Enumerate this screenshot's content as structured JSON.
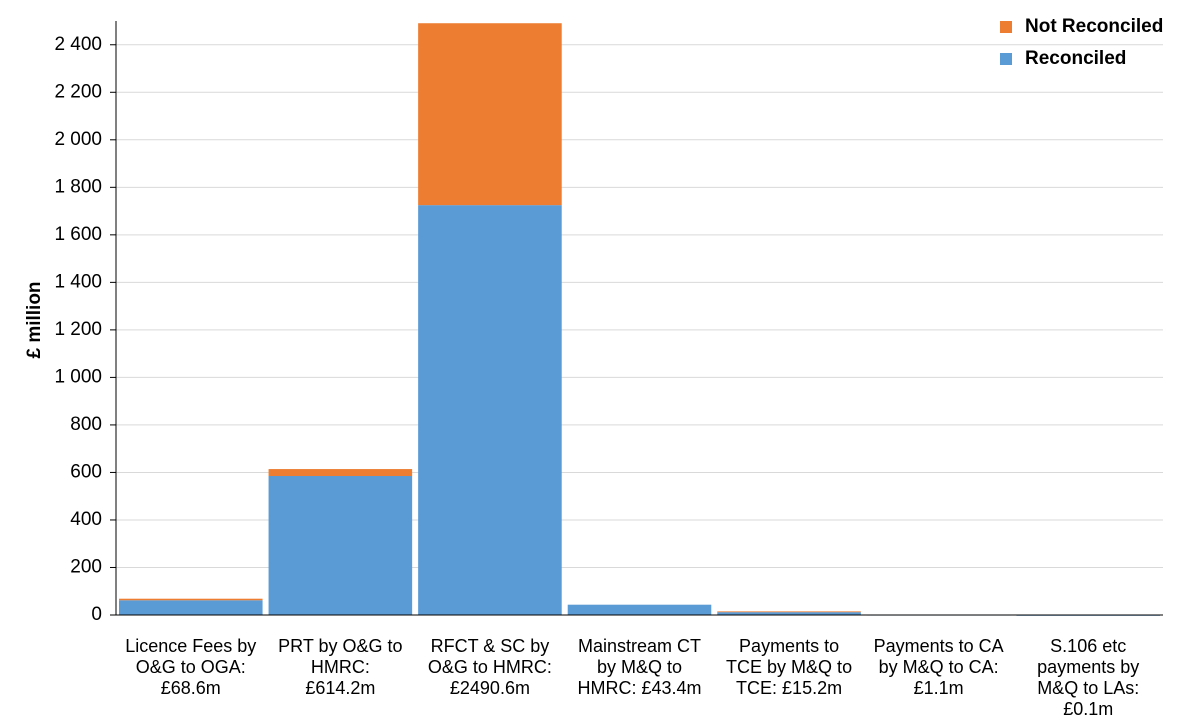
{
  "chart_data": {
    "type": "bar",
    "stacked": true,
    "title": "",
    "xlabel": "",
    "ylabel": "£ million",
    "ylim": [
      0,
      2500
    ],
    "yticks": [
      0,
      200,
      400,
      600,
      800,
      1000,
      1200,
      1400,
      1600,
      1800,
      2000,
      2200,
      2400
    ],
    "ytick_labels": [
      "0",
      "200",
      "400",
      "600",
      "800",
      "1 000",
      "1 200",
      "1 400",
      "1 600",
      "1 800",
      "2 000",
      "2 200",
      "2 400"
    ],
    "grid": "horizontal",
    "legend_position": "top-right",
    "categories": [
      [
        "Licence Fees by",
        "O&G to OGA:",
        "£68.6m"
      ],
      [
        "PRT by O&G to",
        "HMRC:",
        "£614.2m"
      ],
      [
        "RFCT & SC by",
        "O&G to HMRC:",
        "£2490.6m"
      ],
      [
        "Mainstream CT",
        "by M&Q to",
        "HMRC: £43.4m"
      ],
      [
        "Payments to",
        "TCE by M&Q to",
        "TCE: £15.2m"
      ],
      [
        "Payments to CA",
        "by M&Q to CA:",
        "£1.1m"
      ],
      [
        "S.106 etc",
        "payments by",
        "M&Q to LAs:",
        "£0.1m"
      ]
    ],
    "series": [
      {
        "name": "Reconciled",
        "color": "#5B9BD5",
        "values": [
          62,
          585,
          1725,
          43.4,
          12,
          1.1,
          0.1
        ]
      },
      {
        "name": "Not Reconciled",
        "color": "#ED7D31",
        "values": [
          6.6,
          29.2,
          765.6,
          0,
          3.2,
          0,
          0
        ]
      }
    ],
    "legend": [
      {
        "name": "Not Reconciled",
        "color": "#ED7D31"
      },
      {
        "name": "Reconciled",
        "color": "#5B9BD5"
      }
    ]
  }
}
